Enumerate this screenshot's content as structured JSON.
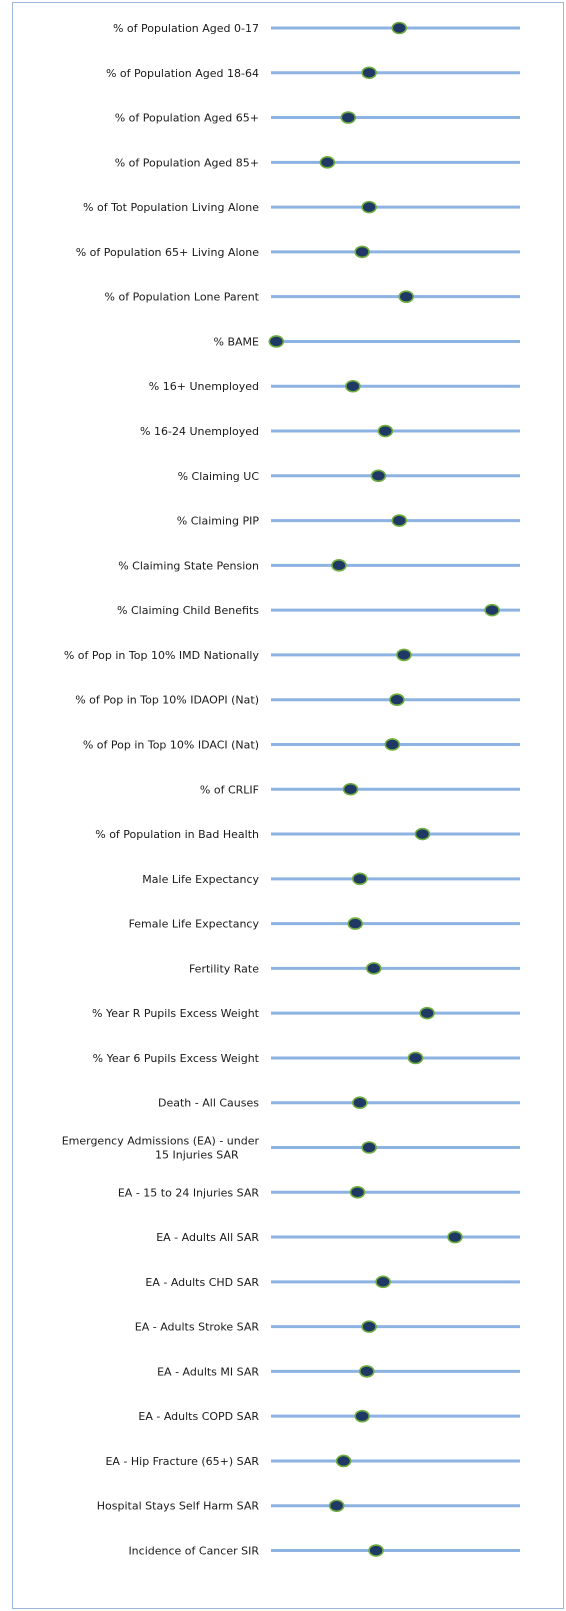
{
  "colors": {
    "track": "#8db3e2",
    "marker_fill": "#1f3864",
    "marker_stroke": "#6fae3f",
    "frame_border": "#9db7d8"
  },
  "chart_data": {
    "type": "scatter",
    "title": "",
    "xlabel": "",
    "ylabel": "",
    "xlim": [
      0,
      100
    ],
    "grid": false,
    "legend": "none",
    "series": [
      {
        "values": [
          54,
          41,
          32,
          23,
          41,
          38,
          57,
          1,
          34,
          48,
          45,
          54,
          28,
          94,
          56,
          53,
          51,
          33,
          64,
          37,
          35,
          43,
          66,
          61,
          37,
          41,
          36,
          78,
          47,
          41,
          40,
          38,
          30,
          27,
          44
        ]
      }
    ],
    "categories": [
      "% of Population Aged 0-17",
      "% of Population Aged 18-64",
      "% of Population Aged 65+",
      "% of Population Aged 85+",
      "% of Tot Population Living Alone",
      "% of Population 65+ Living Alone",
      "% of Population Lone Parent",
      "% BAME",
      "% 16+ Unemployed",
      "% 16-24 Unemployed",
      "% Claiming UC",
      "% Claiming PIP",
      "% Claiming State Pension",
      "% Claiming Child Benefits",
      "% of Pop in Top 10% IMD Nationally",
      "% of Pop in Top 10% IDAOPI (Nat)",
      "% of Pop in Top 10% IDACI (Nat)",
      "% of CRLIF",
      "% of Population in Bad Health",
      "Male Life Expectancy",
      "Female Life Expectancy",
      "Fertility Rate",
      "% Year R Pupils Excess Weight",
      "% Year 6 Pupils Excess Weight",
      "Death - All Causes",
      [
        "Emergency Admissions (EA) - under",
        "15 Injuries SAR"
      ],
      "EA - 15 to 24 Injuries SAR",
      "EA - Adults All  SAR",
      "EA - Adults CHD SAR",
      "EA - Adults Stroke SAR",
      "EA - Adults MI SAR",
      "EA - Adults COPD SAR",
      "EA - Hip Fracture (65+) SAR",
      "Hospital Stays Self Harm SAR",
      "Incidence of Cancer SIR"
    ]
  }
}
